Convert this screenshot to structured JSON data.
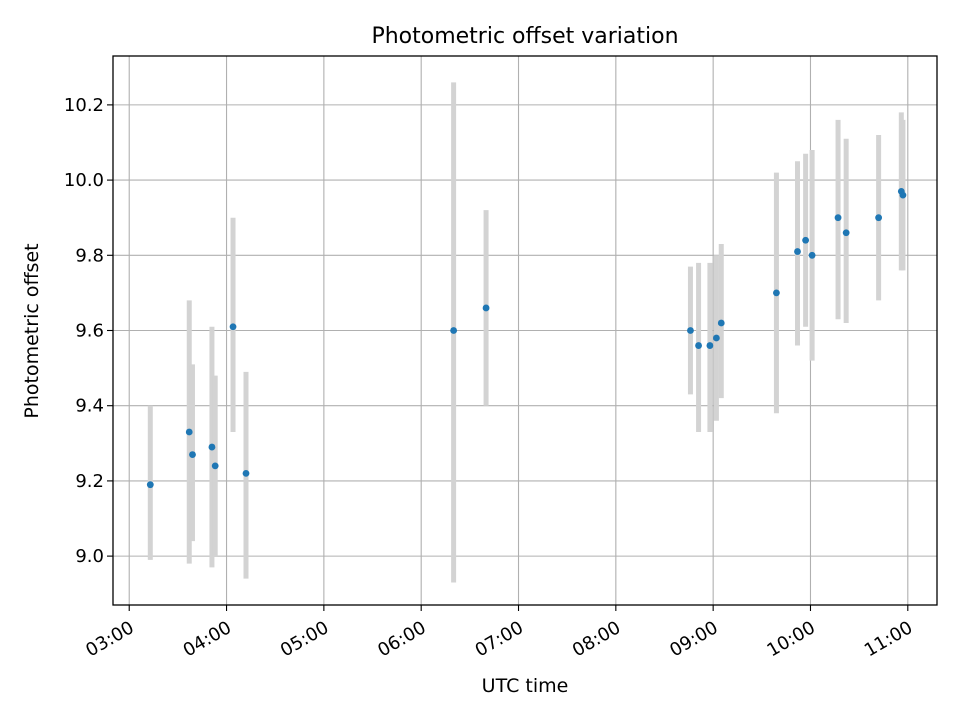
{
  "chart_data": {
    "type": "scatter",
    "title": "Photometric offset variation",
    "xlabel": "UTC time",
    "ylabel": "Photometric offset",
    "x_type": "time",
    "xlim": [
      "02:50",
      "11:18"
    ],
    "ylim": [
      8.87,
      10.33
    ],
    "x_ticks": [
      "03:00",
      "04:00",
      "05:00",
      "06:00",
      "07:00",
      "08:00",
      "09:00",
      "10:00",
      "11:00"
    ],
    "y_ticks": [
      9.0,
      9.2,
      9.4,
      9.6,
      9.8,
      10.0,
      10.2
    ],
    "y_tick_labels": [
      "9.0",
      "9.2",
      "9.4",
      "9.6",
      "9.8",
      "10.0",
      "10.2"
    ],
    "grid": true,
    "point_color": "#1f77b4",
    "errorbar_color": "#d3d3d3",
    "points": [
      {
        "time": "03:13",
        "y": 9.19,
        "lo": 8.99,
        "hi": 9.4
      },
      {
        "time": "03:37",
        "y": 9.33,
        "lo": 8.98,
        "hi": 9.68
      },
      {
        "time": "03:39",
        "y": 9.27,
        "lo": 9.04,
        "hi": 9.51
      },
      {
        "time": "03:51",
        "y": 9.29,
        "lo": 8.97,
        "hi": 9.61
      },
      {
        "time": "03:53",
        "y": 9.24,
        "lo": 9.0,
        "hi": 9.48
      },
      {
        "time": "04:04",
        "y": 9.61,
        "lo": 9.33,
        "hi": 9.9
      },
      {
        "time": "04:12",
        "y": 9.22,
        "lo": 8.94,
        "hi": 9.49
      },
      {
        "time": "06:20",
        "y": 9.6,
        "lo": 8.93,
        "hi": 10.26
      },
      {
        "time": "06:40",
        "y": 9.66,
        "lo": 9.4,
        "hi": 9.92
      },
      {
        "time": "08:46",
        "y": 9.6,
        "lo": 9.43,
        "hi": 9.77
      },
      {
        "time": "08:51",
        "y": 9.56,
        "lo": 9.33,
        "hi": 9.78
      },
      {
        "time": "08:58",
        "y": 9.56,
        "lo": 9.33,
        "hi": 9.78
      },
      {
        "time": "09:02",
        "y": 9.58,
        "lo": 9.36,
        "hi": 9.8
      },
      {
        "time": "09:05",
        "y": 9.62,
        "lo": 9.42,
        "hi": 9.83
      },
      {
        "time": "09:39",
        "y": 9.7,
        "lo": 9.38,
        "hi": 10.02
      },
      {
        "time": "09:52",
        "y": 9.81,
        "lo": 9.56,
        "hi": 10.05
      },
      {
        "time": "09:57",
        "y": 9.84,
        "lo": 9.61,
        "hi": 10.07
      },
      {
        "time": "10:01",
        "y": 9.8,
        "lo": 9.52,
        "hi": 10.08
      },
      {
        "time": "10:17",
        "y": 9.9,
        "lo": 9.63,
        "hi": 10.16
      },
      {
        "time": "10:22",
        "y": 9.86,
        "lo": 9.62,
        "hi": 10.11
      },
      {
        "time": "10:42",
        "y": 9.9,
        "lo": 9.68,
        "hi": 10.12
      },
      {
        "time": "10:56",
        "y": 9.97,
        "lo": 9.76,
        "hi": 10.18
      },
      {
        "time": "10:57",
        "y": 9.96,
        "lo": 9.76,
        "hi": 10.16
      }
    ]
  }
}
